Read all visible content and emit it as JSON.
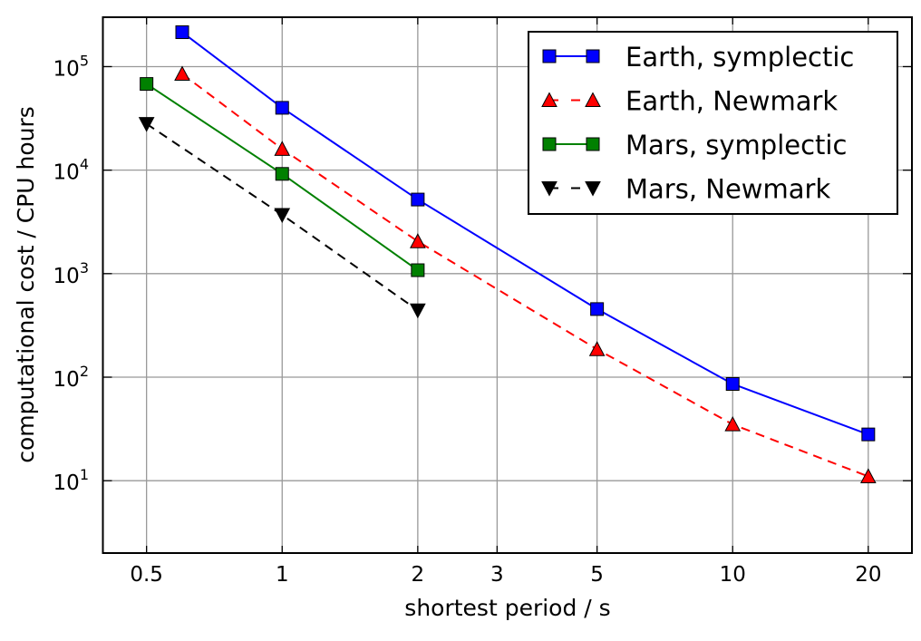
{
  "chart_data": {
    "type": "line",
    "title": "",
    "xlabel": "shortest period / s",
    "ylabel": "computational cost / CPU hours",
    "xscale": "log",
    "yscale": "log",
    "xlim": [
      0.4,
      25
    ],
    "ylim": [
      2,
      300000
    ],
    "grid": true,
    "legend_position": "top-right",
    "xticks": [
      0.5,
      1,
      2,
      3,
      5,
      10,
      20
    ],
    "xtick_labels": [
      "0.5",
      "1",
      "2",
      "3",
      "5",
      "10",
      "20"
    ],
    "yticks": [
      10,
      100,
      1000,
      10000,
      100000
    ],
    "ytick_exponents": [
      "1",
      "2",
      "3",
      "4",
      "5"
    ],
    "ytick_base": "10",
    "series": [
      {
        "name": "Earth, symplectic",
        "color": "#0000ff",
        "linestyle": "solid",
        "marker": "square",
        "x": [
          0.6,
          1,
          2,
          5,
          10,
          20
        ],
        "y": [
          215000,
          40000,
          5200,
          455,
          86,
          28
        ]
      },
      {
        "name": "Earth, Newmark",
        "color": "#ff0000",
        "linestyle": "dashed",
        "marker": "triangle-up",
        "x": [
          0.6,
          1,
          2,
          5,
          10,
          20
        ],
        "y": [
          85000,
          16000,
          2050,
          186,
          35,
          11
        ]
      },
      {
        "name": "Mars, symplectic",
        "color": "#008000",
        "linestyle": "solid",
        "marker": "square",
        "x": [
          0.5,
          1,
          2
        ],
        "y": [
          68000,
          9200,
          1080
        ]
      },
      {
        "name": "Mars, Newmark",
        "color": "#000000",
        "linestyle": "dashed",
        "marker": "triangle-down",
        "x": [
          0.5,
          1,
          2
        ],
        "y": [
          28000,
          3700,
          443
        ]
      }
    ]
  }
}
